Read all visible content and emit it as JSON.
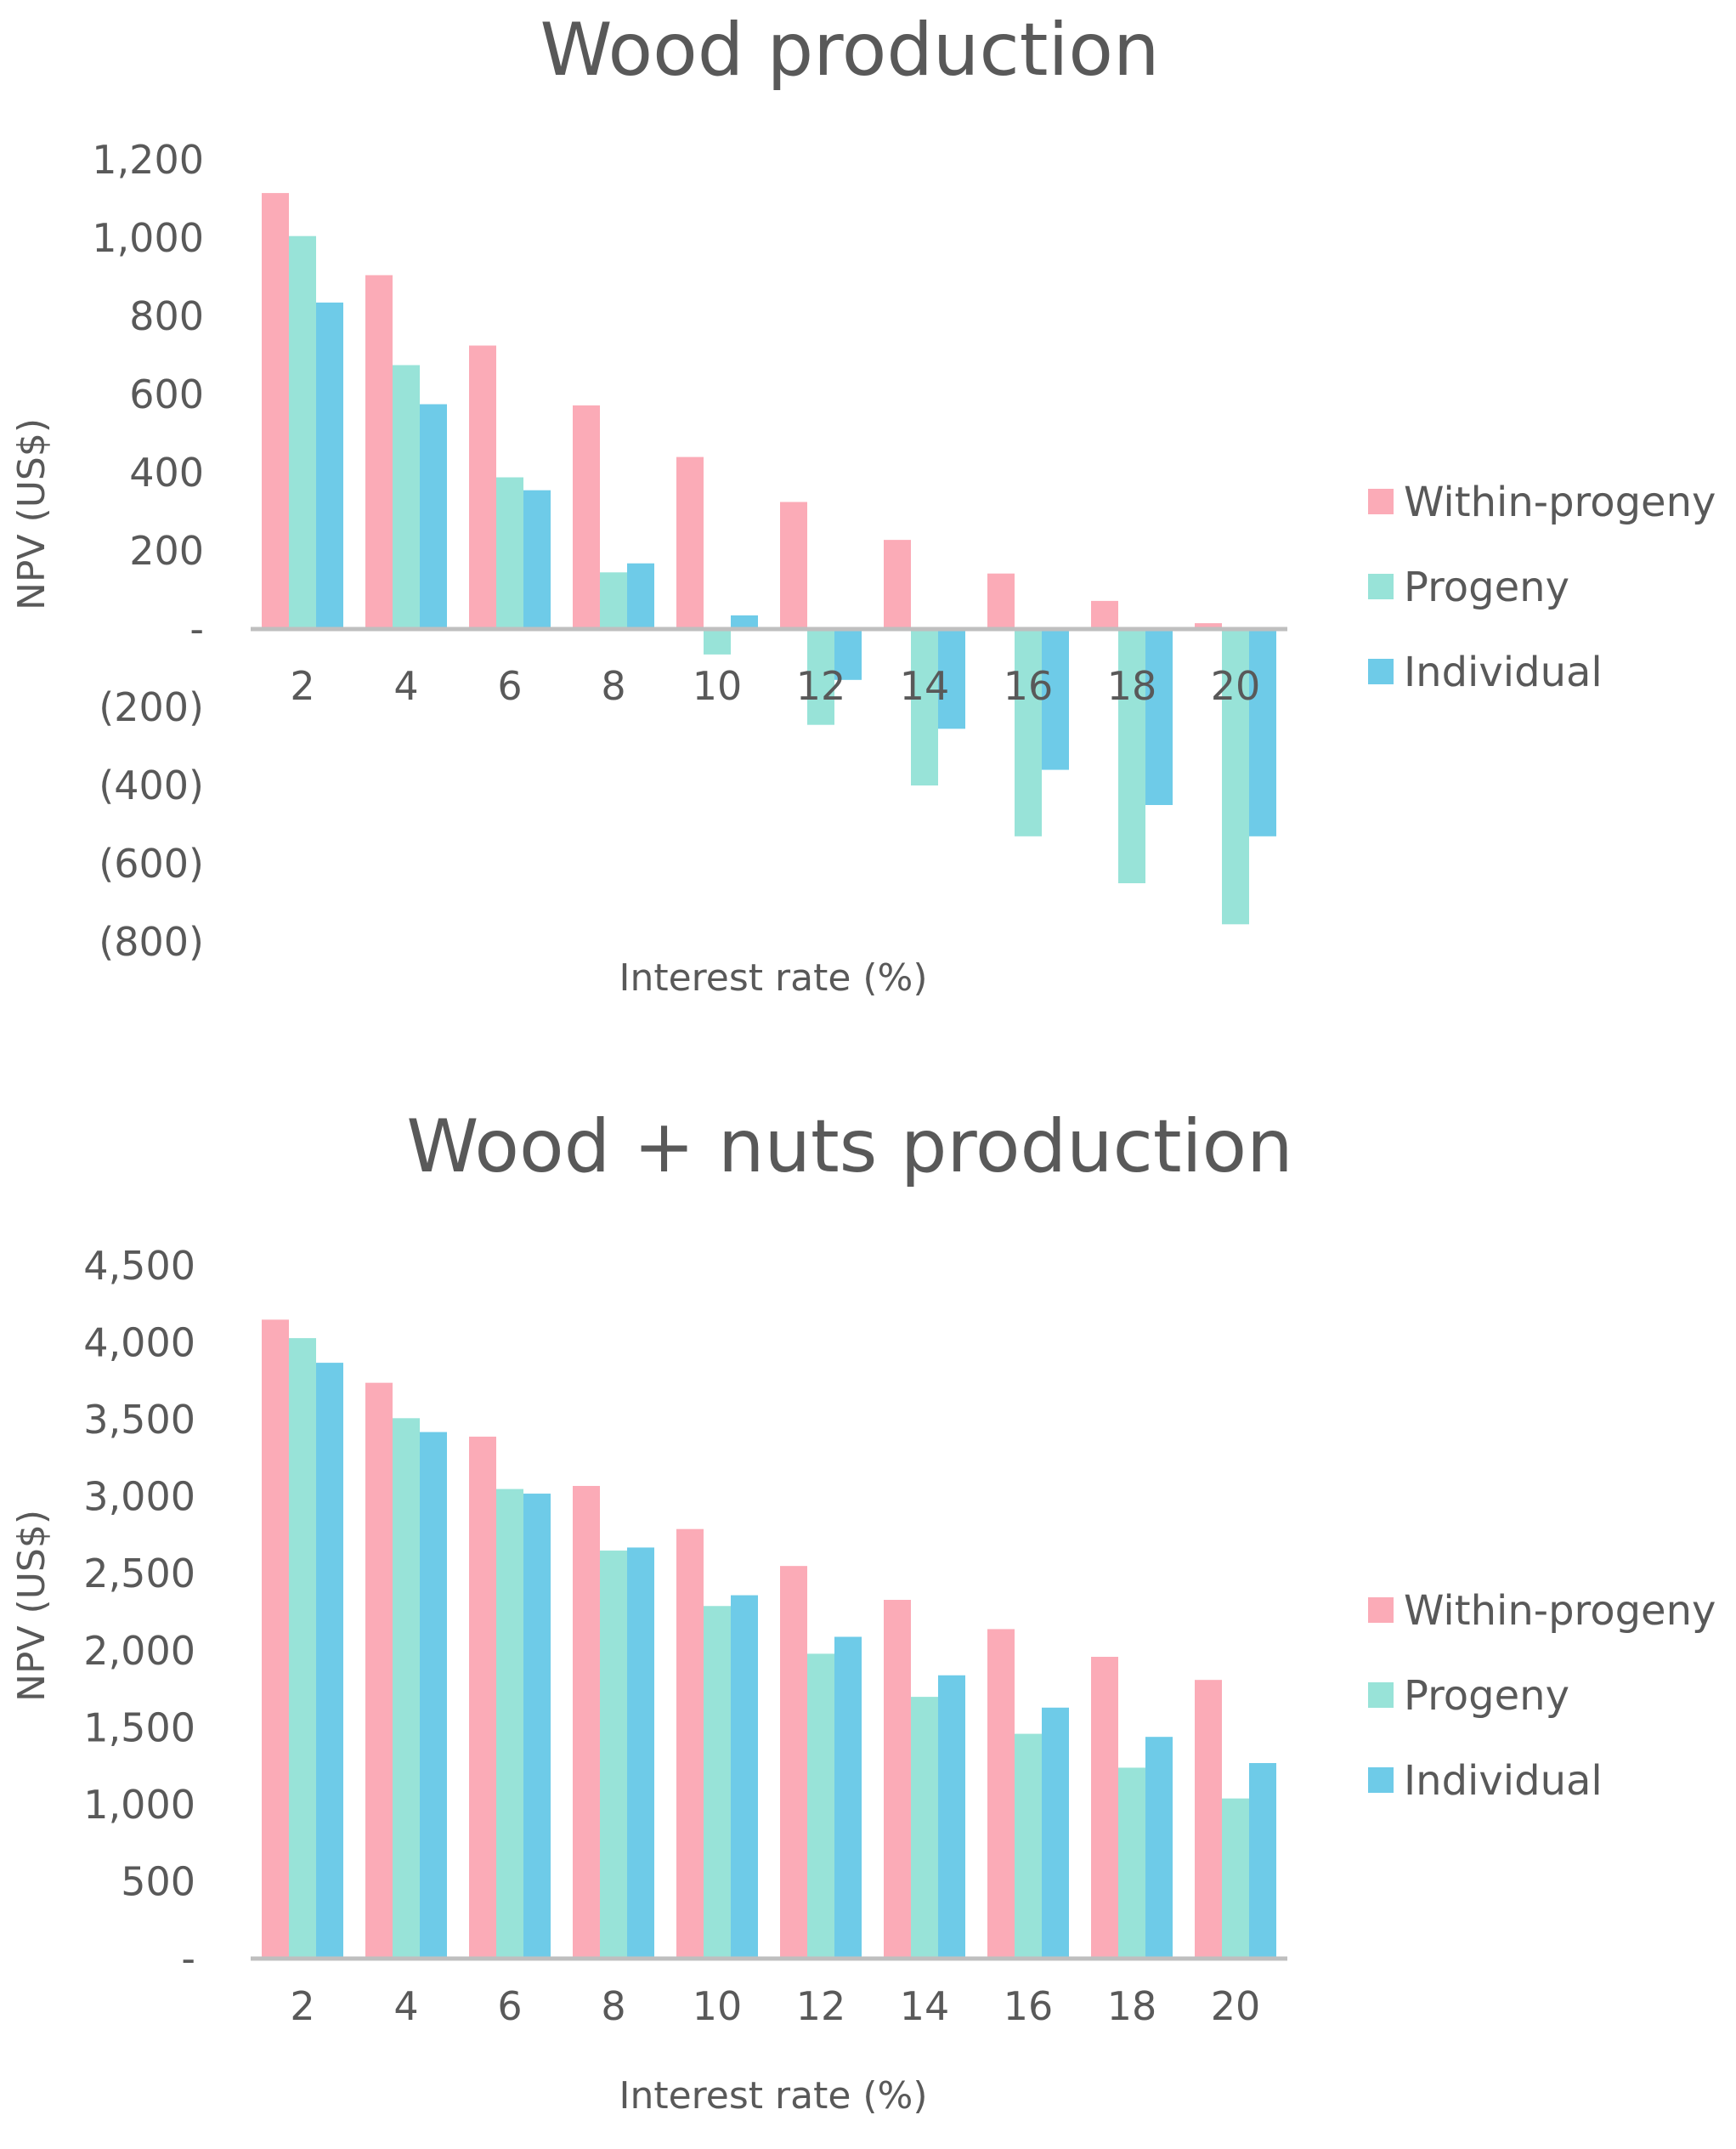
{
  "chart_data": [
    {
      "type": "bar",
      "title": "Wood production",
      "xlabel": "Interest rate (%)",
      "ylabel": "NPV (US$)",
      "categories": [
        "2",
        "4",
        "6",
        "8",
        "10",
        "12",
        "14",
        "16",
        "18",
        "20"
      ],
      "series": [
        {
          "name": "Within-progeny",
          "color": "#fbabb7",
          "values": [
            1115,
            905,
            725,
            572,
            440,
            325,
            228,
            142,
            72,
            15
          ]
        },
        {
          "name": "Progeny",
          "color": "#98e3d8",
          "values": [
            1005,
            675,
            388,
            145,
            -65,
            -245,
            -400,
            -530,
            -650,
            -755
          ]
        },
        {
          "name": "Individual",
          "color": "#6ecbe8",
          "values": [
            835,
            575,
            355,
            168,
            35,
            -130,
            -255,
            -360,
            -450,
            -530
          ]
        }
      ],
      "ylim": [
        -800,
        1200
      ],
      "yticks": [
        1200,
        1000,
        800,
        600,
        400,
        200,
        0,
        -200,
        -400,
        -600,
        -800
      ],
      "ytick_labels": [
        "1,200",
        "1,000",
        "800",
        "600",
        "400",
        "200",
        "-",
        "(200)",
        "(400)",
        "(600)",
        "(800)"
      ],
      "grid": false,
      "legend_position": "right"
    },
    {
      "type": "bar",
      "title": "Wood + nuts production",
      "xlabel": "Interest rate (%)",
      "ylabel": "NPV (US$)",
      "categories": [
        "2",
        "4",
        "6",
        "8",
        "10",
        "12",
        "14",
        "16",
        "18",
        "20"
      ],
      "series": [
        {
          "name": "Within-progeny",
          "color": "#fbabb7",
          "values": [
            4150,
            3740,
            3390,
            3070,
            2790,
            2550,
            2330,
            2140,
            1960,
            1810
          ]
        },
        {
          "name": "Progeny",
          "color": "#98e3d8",
          "values": [
            4030,
            3510,
            3050,
            2650,
            2290,
            1980,
            1700,
            1460,
            1240,
            1040
          ]
        },
        {
          "name": "Individual",
          "color": "#6ecbe8",
          "values": [
            3870,
            3420,
            3020,
            2670,
            2360,
            2090,
            1840,
            1630,
            1440,
            1270
          ]
        }
      ],
      "ylim": [
        0,
        4500
      ],
      "yticks": [
        4500,
        4000,
        3500,
        3000,
        2500,
        2000,
        1500,
        1000,
        500,
        0
      ],
      "ytick_labels": [
        "4,500",
        "4,000",
        "3,500",
        "3,000",
        "2,500",
        "2,000",
        "1,500",
        "1,000",
        "500",
        "-"
      ],
      "grid": false,
      "legend_position": "right"
    }
  ]
}
